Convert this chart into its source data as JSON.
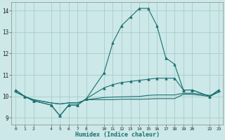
{
  "xlabel": "Humidex (Indice chaleur)",
  "bg_color": "#cce8e8",
  "grid_color": "#aacccc",
  "line_color": "#1a7070",
  "ylim": [
    8.7,
    14.4
  ],
  "yticks": [
    9,
    10,
    11,
    12,
    13,
    14
  ],
  "xticks": [
    0,
    1,
    2,
    4,
    5,
    6,
    7,
    8,
    10,
    11,
    12,
    13,
    14,
    15,
    16,
    17,
    18,
    19,
    20,
    22,
    23
  ],
  "hours": [
    0,
    1,
    2,
    4,
    5,
    6,
    7,
    8,
    10,
    11,
    12,
    13,
    14,
    15,
    16,
    17,
    18,
    19,
    20,
    22,
    23
  ],
  "line1": [
    10.3,
    10.0,
    9.8,
    9.6,
    9.1,
    9.6,
    9.6,
    9.9,
    11.1,
    12.5,
    13.3,
    13.7,
    14.1,
    14.1,
    13.3,
    11.8,
    11.5,
    10.3,
    10.3,
    10.0,
    10.3
  ],
  "line2": [
    10.3,
    10.0,
    9.8,
    9.6,
    9.1,
    9.6,
    9.6,
    9.9,
    10.4,
    10.55,
    10.65,
    10.7,
    10.75,
    10.8,
    10.85,
    10.85,
    10.85,
    10.3,
    10.3,
    10.0,
    10.3
  ],
  "line3": [
    10.2,
    10.0,
    9.85,
    9.7,
    9.65,
    9.7,
    9.7,
    9.85,
    9.95,
    9.97,
    9.98,
    9.99,
    10.0,
    10.05,
    10.07,
    10.07,
    10.07,
    10.15,
    10.15,
    10.05,
    10.2
  ],
  "line4": [
    10.2,
    10.0,
    9.85,
    9.7,
    9.65,
    9.7,
    9.7,
    9.85,
    9.85,
    9.85,
    9.87,
    9.87,
    9.87,
    9.88,
    9.9,
    9.9,
    9.9,
    10.1,
    10.1,
    10.0,
    10.2
  ]
}
